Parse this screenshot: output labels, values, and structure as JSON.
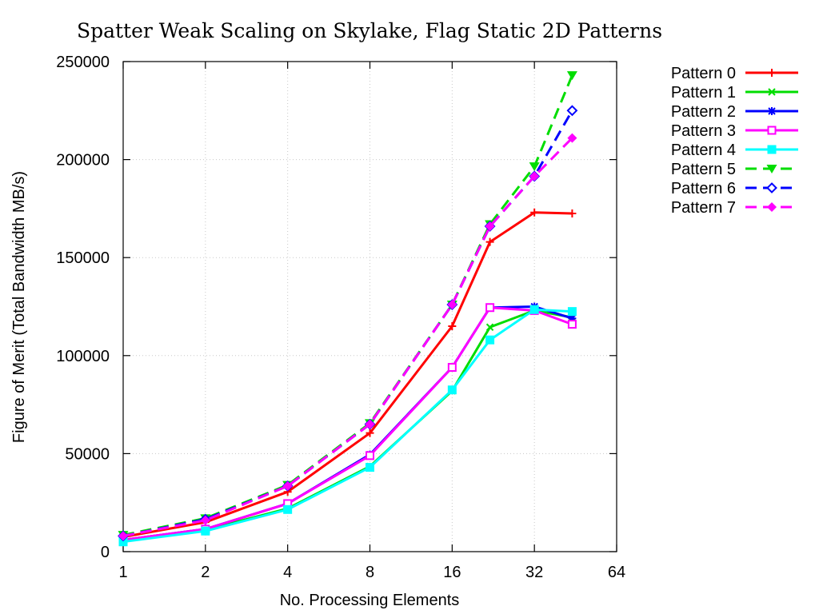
{
  "chart_data": {
    "type": "line",
    "title": "Spatter Weak Scaling on Skylake, Flag Static 2D Patterns",
    "xlabel": "No. Processing Elements",
    "ylabel": "Figure of Merit (Total Bandwidth MB/s)",
    "xscale": "log2",
    "xlim": [
      1,
      64
    ],
    "ylim": [
      0,
      250000
    ],
    "xticks": [
      1,
      2,
      4,
      8,
      16,
      32,
      64
    ],
    "xtick_labels": [
      "1",
      "2",
      "4",
      "8",
      "16",
      "32",
      "64"
    ],
    "yticks": [
      0,
      50000,
      100000,
      150000,
      200000,
      250000
    ],
    "ytick_labels": [
      "0",
      "50000",
      "100000",
      "150000",
      "200000",
      "250000"
    ],
    "grid": true,
    "legend_position": "outside-top-right",
    "x": [
      1,
      2,
      4,
      8,
      16,
      22,
      32,
      44
    ],
    "series": [
      {
        "name": "Pattern 0",
        "color": "#ff0000",
        "dash": "solid",
        "marker": "plus",
        "values": [
          7500,
          15000,
          30500,
          60500,
          115000,
          158000,
          173000,
          172500
        ]
      },
      {
        "name": "Pattern 1",
        "color": "#00dd00",
        "dash": "solid",
        "marker": "cross",
        "values": [
          5500,
          11000,
          22000,
          43500,
          82000,
          114500,
          123000,
          119500
        ]
      },
      {
        "name": "Pattern 2",
        "color": "#0000ff",
        "dash": "solid",
        "marker": "star",
        "values": [
          6000,
          11500,
          24500,
          49500,
          94000,
          124500,
          125000,
          119000
        ]
      },
      {
        "name": "Pattern 3",
        "color": "#ff00ff",
        "dash": "solid",
        "marker": "open-square",
        "values": [
          6000,
          11500,
          24500,
          49000,
          94000,
          124500,
          123000,
          116000
        ]
      },
      {
        "name": "Pattern 4",
        "color": "#00ffff",
        "dash": "solid",
        "marker": "filled-square",
        "values": [
          5000,
          10500,
          21500,
          43000,
          82500,
          108000,
          123500,
          122500
        ]
      },
      {
        "name": "Pattern 5",
        "color": "#00dd00",
        "dash": "dashed",
        "marker": "filled-triangle-down",
        "values": [
          8500,
          17000,
          34000,
          65500,
          126000,
          167000,
          196500,
          243000
        ]
      },
      {
        "name": "Pattern 6",
        "color": "#0000ff",
        "dash": "dashed",
        "marker": "open-diamond",
        "values": [
          8000,
          16500,
          33500,
          65000,
          126000,
          166000,
          191500,
          225000
        ]
      },
      {
        "name": "Pattern 7",
        "color": "#ff00ff",
        "dash": "dashed",
        "marker": "filled-diamond",
        "values": [
          8000,
          16000,
          33500,
          65000,
          126000,
          166000,
          191500,
          211000
        ]
      }
    ]
  }
}
